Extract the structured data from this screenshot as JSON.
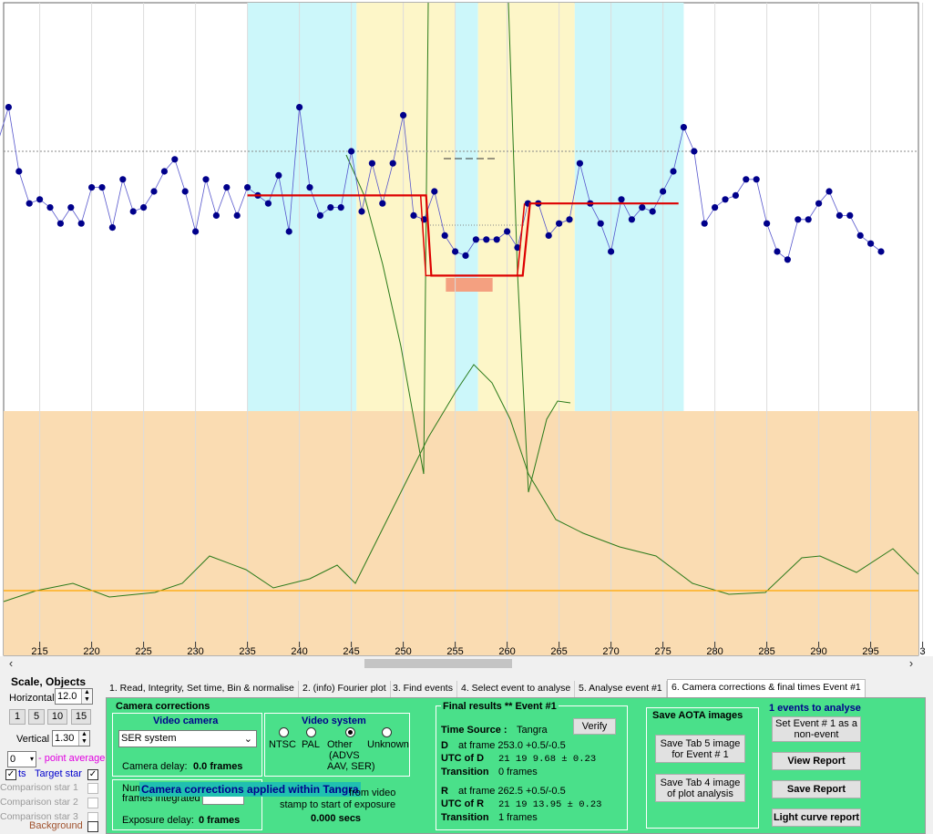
{
  "chart_data": {
    "type": "scatter",
    "x_range": [
      211,
      299
    ],
    "x_ticks": [
      "215",
      "220",
      "225",
      "230",
      "235",
      "240",
      "245",
      "250",
      "255",
      "260",
      "265",
      "270",
      "275",
      "280",
      "285",
      "290",
      "295",
      "3"
    ],
    "series": [
      {
        "values": [
          185,
          196,
          180,
          172,
          173,
          171,
          167,
          171,
          167,
          176,
          176,
          166,
          178,
          170,
          171,
          175,
          180,
          183,
          175,
          165,
          178,
          169,
          176,
          169,
          176,
          174,
          172,
          179,
          165,
          196,
          176,
          169,
          171,
          171,
          185,
          170,
          182,
          172,
          182,
          194,
          169,
          168,
          175,
          164,
          160,
          159,
          163,
          163,
          163,
          165,
          161,
          172,
          172,
          164,
          167,
          168,
          182,
          172,
          167,
          160,
          173,
          168,
          171,
          170,
          175,
          180,
          191,
          185,
          167,
          171,
          173,
          174,
          178,
          178,
          167,
          160,
          158,
          168,
          168,
          172,
          175,
          169,
          169,
          164,
          162,
          160
        ]
      }
    ],
    "model_line": [
      [
        235,
        174
      ],
      [
        252.2,
        174
      ],
      [
        252.7,
        154
      ],
      [
        261.5,
        154
      ],
      [
        262.2,
        172
      ],
      [
        276.5,
        172
      ]
    ],
    "reference_level": 146,
    "colors": {
      "points": "#00008b",
      "line": "#5555cc",
      "model": "#dd0000",
      "green": "#2a7a1a",
      "reference": "#ffa500"
    }
  },
  "scale": {
    "title": "Scale, Objects",
    "horizontal_label": "Horizontal",
    "horizontal_value": "12.0",
    "vertical_label": "Vertical",
    "vertical_value": "1.30",
    "buttons": [
      "1",
      "5",
      "10",
      "15"
    ],
    "point_average_value": "0",
    "point_average_label": "- point average",
    "pts_label": "ts",
    "target_star_label": "Target star",
    "comparison": [
      "Comparison star 1",
      "Comparison star 2",
      "Comparison star 3"
    ],
    "background_label": "Background"
  },
  "tabs": [
    "1.  Read, Integrity, Set time, Bin & normalise",
    "2. (info)  Fourier plot",
    "3. Find events",
    "4. Select event to analyse",
    "5. Analyse event #1",
    "6. Camera corrections & final times Event #1"
  ],
  "camera": {
    "title": "Camera corrections",
    "video_camera_title": "Video camera",
    "camera_select": "SER system",
    "camera_delay_label": "Camera delay:",
    "camera_delay_value": "0.0 frames",
    "frames_integrated_label_1": "Num",
    "frames_integrated_label_2": "frames integrated",
    "tooltip": "Camera corrections applied within Tangra",
    "exposure_delay_label": "Exposure delay:",
    "exposure_delay_value": "0 frames",
    "video_system_title": "Video system",
    "video_systems": [
      "NTSC",
      "PAL",
      "Other",
      "Unknown"
    ],
    "video_system_note_1": "(ADVS",
    "video_system_note_2": "AAV, SER)",
    "stamp_label_1": "from video",
    "stamp_label_2": "stamp to start of exposure",
    "stamp_value": "0.000 secs"
  },
  "final": {
    "title": "Final results  **  Event #1",
    "time_source_label": "Time Source :",
    "time_source_value": "Tangra",
    "verify_label": "Verify",
    "d_label": "D",
    "d_frame": "at frame 253.0  +0.5/-0.5",
    "utc_d_label": "UTC of D",
    "utc_d_value": "21 19  9.68 ± 0.23",
    "transition_label": "Transition",
    "transition_d_value": "0 frames",
    "r_label": "R",
    "r_frame": "at frame 262.5  +0.5/-0.5",
    "utc_r_label": "UTC of R",
    "utc_r_value": "21 19 13.95 ± 0.23",
    "transition_r_value": "1 frames"
  },
  "aota": {
    "title": "Save AOTA images",
    "tab5_button": "Save Tab 5 image for Event # 1",
    "tab4_button": "Save Tab 4 image of plot analysis"
  },
  "right": {
    "events_label": "1  events to analyse",
    "set_event_button": "Set Event # 1 as a non-event",
    "view_report": "View Report",
    "save_report": "Save Report",
    "light_curve_report": "Light curve report"
  }
}
